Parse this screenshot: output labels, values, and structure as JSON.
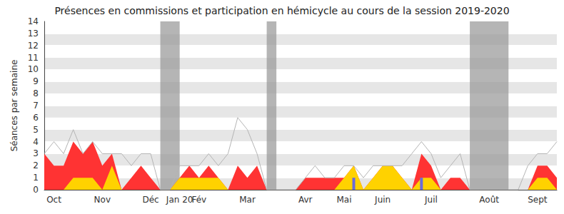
{
  "chart_data": {
    "type": "line",
    "title": "Présences en commissions et participation en hémicycle au cours de la session 2019-2020",
    "y_label": "Séances par semaine",
    "categories": [
      null,
      "Oct",
      null,
      null,
      null,
      null,
      "Nov",
      null,
      null,
      null,
      null,
      "Déc",
      null,
      null,
      "Jan 20",
      null,
      "Fév",
      null,
      null,
      null,
      null,
      "Mar",
      null,
      null,
      null,
      null,
      null,
      "Avr",
      null,
      null,
      null,
      "Mai",
      null,
      null,
      null,
      "Juin",
      null,
      null,
      null,
      null,
      "Juil",
      null,
      null,
      null,
      null,
      null,
      "Août",
      null,
      null,
      null,
      null,
      "Sept",
      null,
      null
    ],
    "series": [
      {
        "type": "area",
        "color": "#ff3333",
        "values": [
          3,
          2,
          2,
          4,
          3,
          4,
          2,
          3,
          0,
          1,
          2,
          1,
          0,
          0,
          1,
          2,
          1,
          2,
          1,
          0,
          2,
          1,
          2,
          0,
          0,
          0,
          0,
          1,
          1,
          1,
          1,
          1,
          2,
          0,
          1,
          2,
          2,
          1,
          0,
          3,
          2,
          0,
          1,
          1,
          0,
          0,
          0,
          0,
          0,
          0,
          0,
          2,
          2,
          1
        ]
      },
      {
        "type": "area",
        "color": "#ffd200",
        "values": [
          0,
          0,
          0,
          1,
          1,
          1,
          0,
          2,
          0,
          0,
          0,
          0,
          0,
          0,
          1,
          1,
          1,
          1,
          1,
          0,
          0,
          0,
          0,
          0,
          0,
          0,
          0,
          0,
          0,
          0,
          0,
          1,
          2,
          0,
          1,
          2,
          2,
          1,
          0,
          1,
          1,
          0,
          0,
          0,
          0,
          0,
          0,
          0,
          0,
          0,
          0,
          1,
          1,
          0
        ]
      },
      {
        "type": "bar",
        "color": "#6b6bdb",
        "values": [
          0,
          0,
          0,
          0,
          0,
          0,
          0,
          0,
          0,
          0,
          0,
          0,
          0,
          0,
          0,
          0,
          0,
          0,
          0,
          0,
          0,
          0,
          0,
          0,
          0,
          0,
          0,
          0,
          0,
          0,
          0,
          0,
          1,
          0,
          0,
          0,
          0,
          0,
          0,
          1,
          0,
          0,
          0,
          0,
          0,
          0,
          0,
          0,
          0,
          0,
          0,
          0,
          0,
          0
        ]
      },
      {
        "type": "line",
        "color": "#b4b4b4",
        "marker": "none",
        "values": [
          3,
          4,
          3,
          5,
          3,
          4,
          3,
          3,
          3,
          2,
          3,
          3,
          0,
          0,
          2,
          2,
          2,
          3,
          2,
          3,
          6,
          5,
          3,
          0,
          0,
          0,
          0,
          1,
          2,
          1,
          1,
          2,
          2,
          1,
          2,
          2,
          2,
          2,
          3,
          4,
          3,
          1,
          2,
          3,
          0,
          0,
          0,
          0,
          0,
          0,
          2,
          3,
          3,
          4
        ]
      }
    ],
    "shaded_ranges": [
      [
        12,
        14
      ],
      [
        23,
        24
      ],
      [
        44,
        48
      ]
    ],
    "ylim": [
      0,
      14
    ],
    "yticks": [
      0,
      1,
      2,
      3,
      4,
      5,
      6,
      7,
      8,
      9,
      10,
      11,
      12,
      13,
      14
    ],
    "grid": true
  }
}
